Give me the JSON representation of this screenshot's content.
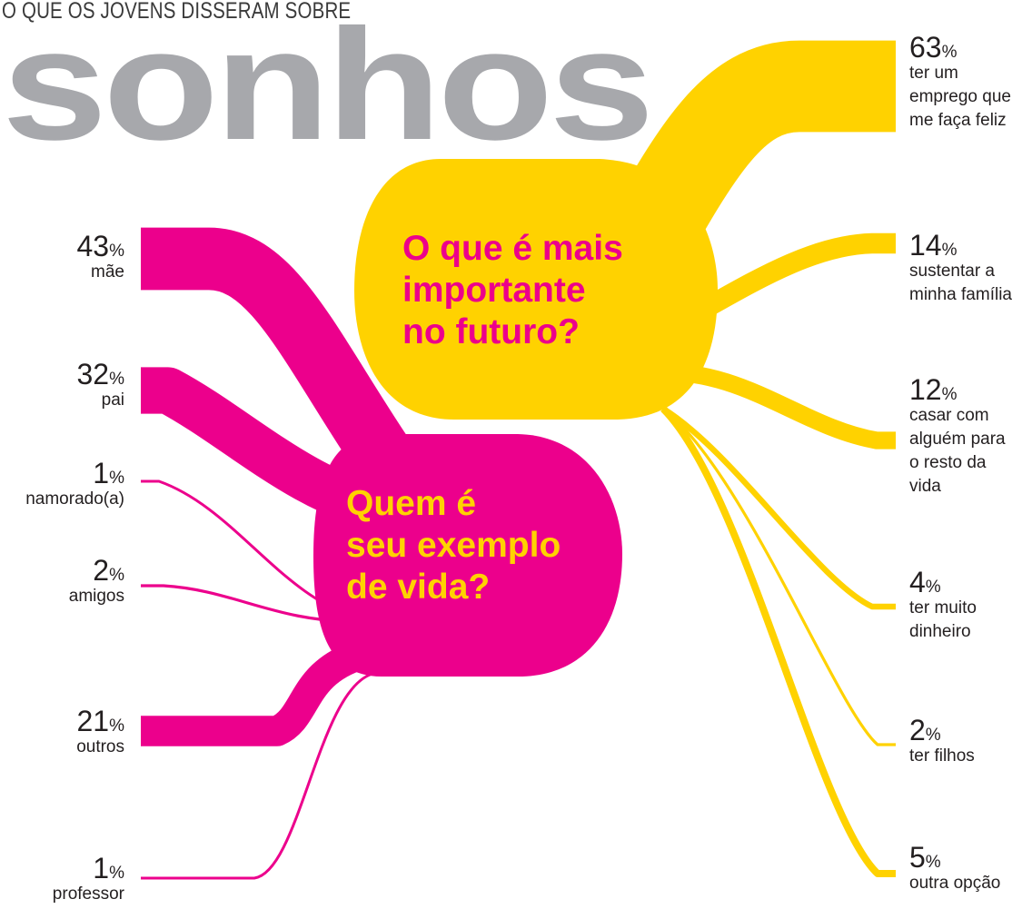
{
  "kicker": "O QUE OS JOVENS DISSERAM SOBRE",
  "title": "sonhos",
  "colors": {
    "pink": "#ec008c",
    "yellow": "#ffd200",
    "title_gray": "#a7a8ac",
    "text": "#231f20"
  },
  "chart_data": [
    {
      "type": "sankey",
      "title": "Quem é\nseu exemplo\nde vida?",
      "unit": "%",
      "color": "#ec008c",
      "series": [
        {
          "name": "mãe",
          "value": 43
        },
        {
          "name": "pai",
          "value": 32
        },
        {
          "name": "namorado(a)",
          "value": 1
        },
        {
          "name": "amigos",
          "value": 2
        },
        {
          "name": "outros",
          "value": 21
        },
        {
          "name": "professor",
          "value": 1
        }
      ]
    },
    {
      "type": "sankey",
      "title": "O que é mais\nimportante\nno futuro?",
      "unit": "%",
      "color": "#ffd200",
      "series": [
        {
          "name": "ter um\nemprego que\nme faça feliz",
          "value": 63
        },
        {
          "name": "sustentar a\nminha família",
          "value": 14
        },
        {
          "name": "casar com\nalguém para\no resto da\nvida",
          "value": 12
        },
        {
          "name": "ter muito\ndinheiro",
          "value": 4
        },
        {
          "name": "ter filhos",
          "value": 2
        },
        {
          "name": "outra opção",
          "value": 5
        }
      ]
    }
  ]
}
